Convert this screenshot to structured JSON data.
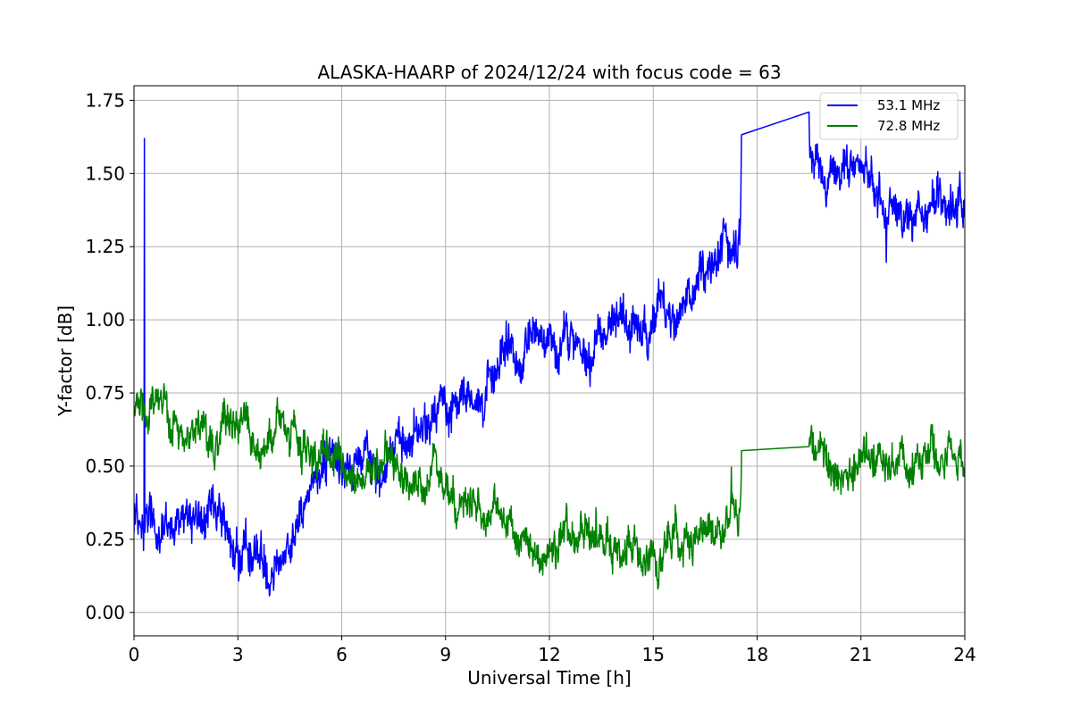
{
  "chart_data": {
    "type": "line",
    "title": "ALASKA-HAARP of 2024/12/24 with focus code = 63",
    "xlabel": "Universal Time [h]",
    "ylabel": "Y-factor [dB]",
    "xlim": [
      0,
      24
    ],
    "ylim": [
      -0.08,
      1.8
    ],
    "xticks": [
      0,
      3,
      6,
      9,
      12,
      15,
      18,
      21,
      24
    ],
    "xtick_labels": [
      "0",
      "3",
      "6",
      "9",
      "12",
      "15",
      "18",
      "21",
      "24"
    ],
    "yticks": [
      0.0,
      0.25,
      0.5,
      0.75,
      1.0,
      1.25,
      1.5,
      1.75
    ],
    "ytick_labels": [
      "0.00",
      "0.25",
      "0.50",
      "0.75",
      "1.00",
      "1.25",
      "1.50",
      "1.75"
    ],
    "grid": true,
    "legend_position": "top-right",
    "series": [
      {
        "name": "53.1 MHz",
        "color": "#0000ff",
        "noise": 0.05,
        "gap": [
          17.55,
          19.5
        ],
        "spike": {
          "x": 0.3,
          "y": 1.62
        },
        "spike2": {
          "x": 19.5,
          "y": 1.71
        },
        "x": [
          0,
          0.5,
          1.0,
          1.5,
          2.0,
          2.5,
          3.0,
          3.5,
          4.0,
          4.4,
          4.8,
          5.2,
          5.6,
          6.0,
          6.4,
          6.8,
          7.2,
          7.6,
          8.0,
          8.5,
          9.0,
          9.5,
          10.0,
          10.5,
          11.0,
          11.5,
          12.0,
          12.5,
          13.0,
          13.5,
          14.0,
          14.5,
          15.0,
          15.5,
          16.0,
          16.5,
          17.0,
          17.5,
          17.55,
          19.5,
          20.0,
          20.5,
          21.0,
          21.5,
          22.0,
          22.5,
          23.0,
          23.5,
          24.0
        ],
        "y": [
          0.35,
          0.3,
          0.3,
          0.3,
          0.27,
          0.24,
          0.22,
          0.2,
          0.18,
          0.2,
          0.35,
          0.45,
          0.5,
          0.5,
          0.52,
          0.55,
          0.57,
          0.55,
          0.6,
          0.62,
          0.67,
          0.72,
          0.8,
          0.85,
          0.88,
          0.9,
          0.92,
          0.93,
          0.95,
          0.97,
          0.98,
          1.0,
          1.02,
          1.05,
          1.1,
          1.15,
          1.2,
          1.25,
          1.55,
          1.57,
          1.45,
          1.45,
          1.47,
          1.45,
          1.4,
          1.38,
          1.38,
          1.4,
          1.42
        ]
      },
      {
        "name": "72.8 MHz",
        "color": "#008000",
        "noise": 0.04,
        "gap": [
          17.55,
          19.5
        ],
        "x": [
          0,
          0.5,
          1.0,
          1.5,
          2.0,
          2.5,
          3.0,
          3.5,
          4.0,
          4.5,
          5.0,
          5.5,
          6.0,
          6.5,
          7.0,
          7.5,
          8.0,
          8.5,
          9.0,
          9.5,
          10.0,
          10.5,
          11.0,
          11.5,
          12.0,
          12.5,
          13.0,
          13.5,
          14.0,
          14.5,
          15.0,
          15.5,
          16.0,
          16.5,
          17.0,
          17.5,
          17.55,
          19.5,
          20.0,
          20.5,
          21.0,
          21.5,
          22.0,
          22.5,
          23.0,
          23.5,
          24.0
        ],
        "y": [
          0.7,
          0.7,
          0.68,
          0.67,
          0.66,
          0.65,
          0.63,
          0.61,
          0.6,
          0.58,
          0.55,
          0.53,
          0.52,
          0.5,
          0.5,
          0.48,
          0.46,
          0.43,
          0.4,
          0.37,
          0.33,
          0.3,
          0.27,
          0.25,
          0.23,
          0.22,
          0.22,
          0.22,
          0.22,
          0.23,
          0.23,
          0.24,
          0.25,
          0.27,
          0.29,
          0.32,
          0.54,
          0.545,
          0.5,
          0.52,
          0.55,
          0.53,
          0.52,
          0.52,
          0.53,
          0.52,
          0.53
        ]
      }
    ]
  }
}
